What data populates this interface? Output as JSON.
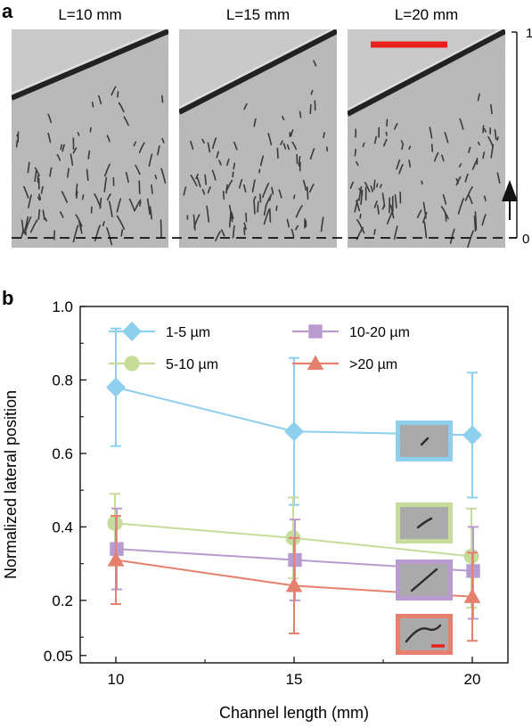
{
  "panel_a": {
    "label": "a",
    "images": [
      {
        "label": "L=10 mm",
        "grain": 0.1
      },
      {
        "label": "L=15 mm",
        "grain": 0.19
      },
      {
        "label": "L=20 mm",
        "grain": 0.1
      }
    ],
    "axis": {
      "top_label": "1",
      "bottom_label": "0"
    },
    "colors": {
      "scale_bar": "#e8211f",
      "background": "#b9b9b9",
      "wall": "#222222",
      "cell": "#3a3a3a"
    }
  },
  "panel_b": {
    "label": "b"
  },
  "chart_data": {
    "type": "line",
    "title": "",
    "xlabel": "Channel length (mm)",
    "ylabel": "Normalized lateral position",
    "x": [
      10,
      15,
      20
    ],
    "xlim": [
      9,
      21
    ],
    "ylim": [
      0.03,
      1.0
    ],
    "xticks": [
      10,
      15,
      20
    ],
    "yticks": [
      0.05,
      0.2,
      0.4,
      0.6,
      0.8,
      1.0
    ],
    "ytick_labels": [
      "0.05",
      "0.2",
      "0.4",
      "0.6",
      "0.8",
      "1.0"
    ],
    "legend": "top",
    "series": [
      {
        "name": "1-5 µm",
        "marker": "diamond",
        "color": "#8ecfee",
        "values": [
          0.78,
          0.66,
          0.65
        ],
        "err_low": [
          0.62,
          0.46,
          0.48
        ],
        "err_high": [
          0.94,
          0.86,
          0.82
        ]
      },
      {
        "name": "5-10 µm",
        "marker": "circle",
        "color": "#c6dc9a",
        "values": [
          0.41,
          0.37,
          0.32
        ],
        "err_low": [
          0.33,
          0.26,
          0.18
        ],
        "err_high": [
          0.49,
          0.48,
          0.45
        ]
      },
      {
        "name": "10-20 µm",
        "marker": "square",
        "color": "#b99bcf",
        "values": [
          0.34,
          0.31,
          0.28
        ],
        "err_low": [
          0.23,
          0.2,
          0.15
        ],
        "err_high": [
          0.45,
          0.42,
          0.4
        ]
      },
      {
        "name": ">20 µm",
        "marker": "triangle",
        "color": "#e6806e",
        "values": [
          0.31,
          0.24,
          0.21
        ],
        "err_low": [
          0.19,
          0.11,
          0.09
        ],
        "err_high": [
          0.43,
          0.37,
          0.33
        ]
      }
    ],
    "insets": [
      {
        "series": "1-5 µm",
        "border": "#8ecfee"
      },
      {
        "series": "5-10 µm",
        "border": "#c6dc9a"
      },
      {
        "series": "10-20 µm",
        "border": "#b99bcf"
      },
      {
        "series": ">20 µm",
        "border": "#e6806e",
        "scale_bar": "#e8211f"
      }
    ]
  }
}
